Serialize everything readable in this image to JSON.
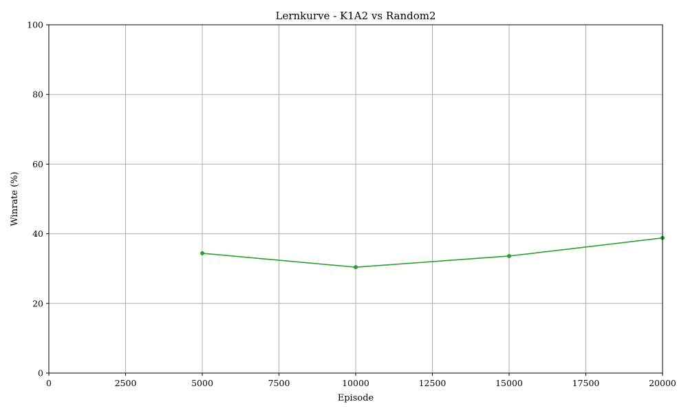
{
  "chart_data": {
    "type": "line",
    "title": "Lernkurve - K1A2 vs Random2",
    "xlabel": "Episode",
    "ylabel": "Winrate (%)",
    "xlim": [
      0,
      20000
    ],
    "ylim": [
      0,
      100
    ],
    "xticks": [
      0,
      2500,
      5000,
      7500,
      10000,
      12500,
      15000,
      17500,
      20000
    ],
    "yticks": [
      0,
      20,
      40,
      60,
      80,
      100
    ],
    "xtick_labels": [
      "0",
      "2500",
      "5000",
      "7500",
      "10000",
      "12500",
      "15000",
      "17500",
      "20000"
    ],
    "ytick_labels": [
      "0",
      "20",
      "40",
      "60",
      "80",
      "100"
    ],
    "grid": true,
    "series": [
      {
        "color": "#2ca02c",
        "marker": "circle",
        "x": [
          5000,
          10000,
          15000,
          20000
        ],
        "y": [
          34.4,
          30.4,
          33.6,
          38.8
        ]
      }
    ]
  }
}
